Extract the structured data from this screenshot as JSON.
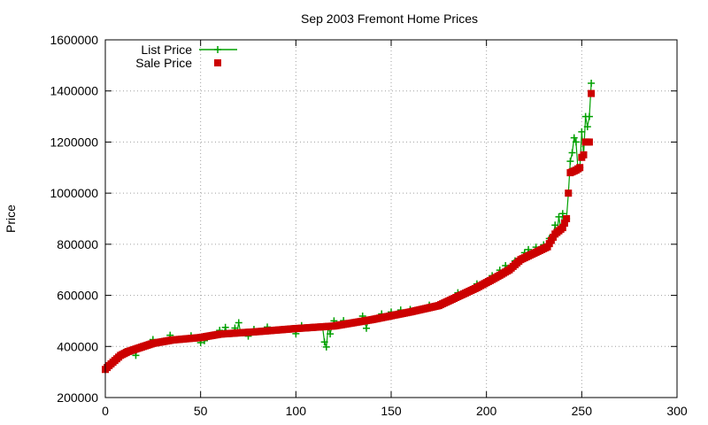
{
  "chart_data": {
    "type": "scatter",
    "title": "Sep 2003 Fremont Home Prices",
    "xlabel": "",
    "ylabel": "Price",
    "xlim": [
      0,
      300
    ],
    "ylim": [
      200000,
      1600000
    ],
    "x_ticks": [
      0,
      50,
      100,
      150,
      200,
      250,
      300
    ],
    "y_ticks": [
      200000,
      400000,
      600000,
      800000,
      1000000,
      1200000,
      1400000,
      1600000
    ],
    "grid": true,
    "legend": "top-left",
    "colors": {
      "list": "#00a000",
      "sale": "#cc0000"
    },
    "sale_anchors": [
      [
        0,
        310000
      ],
      [
        2,
        325000
      ],
      [
        5,
        345000
      ],
      [
        8,
        365000
      ],
      [
        12,
        380000
      ],
      [
        18,
        395000
      ],
      [
        25,
        412000
      ],
      [
        35,
        425000
      ],
      [
        50,
        435000
      ],
      [
        60,
        448000
      ],
      [
        80,
        458000
      ],
      [
        100,
        470000
      ],
      [
        120,
        480000
      ],
      [
        140,
        505000
      ],
      [
        160,
        535000
      ],
      [
        175,
        560000
      ],
      [
        185,
        595000
      ],
      [
        195,
        630000
      ],
      [
        205,
        670000
      ],
      [
        212,
        700000
      ],
      [
        218,
        740000
      ],
      [
        225,
        765000
      ],
      [
        232,
        790000
      ],
      [
        236,
        840000
      ],
      [
        240,
        865000
      ],
      [
        242,
        900000
      ],
      [
        243,
        1000000
      ],
      [
        244,
        1080000
      ],
      [
        247,
        1090000
      ],
      [
        249,
        1100000
      ],
      [
        250,
        1140000
      ],
      [
        251,
        1150000
      ],
      [
        252,
        1200000
      ],
      [
        254,
        1200000
      ],
      [
        255,
        1390000
      ]
    ],
    "list_deviations": [
      [
        10,
        5000
      ],
      [
        16,
        -25000
      ],
      [
        25,
        15000
      ],
      [
        34,
        20000
      ],
      [
        45,
        10000
      ],
      [
        50,
        -20000
      ],
      [
        52,
        -15000
      ],
      [
        60,
        15000
      ],
      [
        63,
        25000
      ],
      [
        68,
        20000
      ],
      [
        70,
        40000
      ],
      [
        75,
        -15000
      ],
      [
        78,
        10000
      ],
      [
        85,
        15000
      ],
      [
        100,
        -20000
      ],
      [
        103,
        10000
      ],
      [
        115,
        -60000
      ],
      [
        116,
        -80000
      ],
      [
        118,
        -30000
      ],
      [
        120,
        20000
      ],
      [
        125,
        15000
      ],
      [
        135,
        20000
      ],
      [
        137,
        -30000
      ],
      [
        145,
        15000
      ],
      [
        150,
        15000
      ],
      [
        155,
        15000
      ],
      [
        160,
        10000
      ],
      [
        170,
        10000
      ],
      [
        185,
        15000
      ],
      [
        195,
        15000
      ],
      [
        203,
        15000
      ],
      [
        207,
        20000
      ],
      [
        210,
        25000
      ],
      [
        215,
        15000
      ],
      [
        220,
        20000
      ],
      [
        222,
        25000
      ],
      [
        226,
        20000
      ],
      [
        230,
        15000
      ],
      [
        233,
        20000
      ],
      [
        236,
        35000
      ],
      [
        238,
        55000
      ],
      [
        240,
        55000
      ],
      [
        244,
        45000
      ],
      [
        245,
        75000
      ],
      [
        246,
        130000
      ],
      [
        247,
        110000
      ],
      [
        250,
        100000
      ],
      [
        252,
        100000
      ],
      [
        253,
        60000
      ],
      [
        254,
        100000
      ],
      [
        255,
        40000
      ]
    ],
    "legend_entries": [
      {
        "label": "List Price",
        "key": "list"
      },
      {
        "label": "Sale Price",
        "key": "sale"
      }
    ]
  }
}
